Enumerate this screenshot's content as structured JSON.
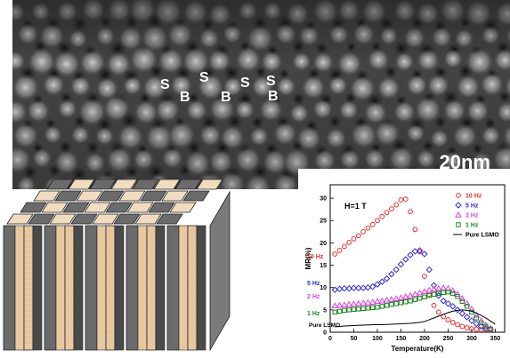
{
  "micrograph": {
    "site_labels": [
      "S",
      "B",
      "S",
      "B",
      "S",
      "S",
      "B"
    ],
    "scale_bar": "20nm"
  },
  "schematic": {
    "colors": {
      "pillar": "#6b6b6b",
      "matrix": "#e8c8a0",
      "top_light": "#f2dcc0"
    }
  },
  "chart_data": {
    "type": "scatter",
    "xlabel": "Temperature(K)",
    "ylabel": "MR(%)",
    "xlim": [
      0,
      370
    ],
    "ylim": [
      0,
      33
    ],
    "xticks": [
      0,
      50,
      100,
      150,
      200,
      250,
      300,
      350
    ],
    "yticks": [
      0,
      5,
      10,
      15,
      20,
      25,
      30
    ],
    "annotation": "H=1 T",
    "series": [
      {
        "name": "10 Hz",
        "marker": "circle",
        "color": "#e8302a",
        "x": [
          10,
          20,
          30,
          40,
          50,
          60,
          70,
          80,
          90,
          100,
          110,
          120,
          130,
          140,
          150,
          160,
          170,
          180,
          190,
          200,
          210,
          220,
          230,
          240,
          250,
          260,
          270,
          280,
          290,
          300,
          310,
          320,
          330,
          340
        ],
        "y": [
          17.5,
          18.3,
          19.2,
          20.1,
          20.9,
          21.6,
          22.5,
          23.3,
          24.1,
          25.0,
          25.9,
          26.8,
          27.6,
          28.5,
          29.6,
          29.8,
          27.0,
          23.0,
          18.0,
          12.5,
          8.5,
          6.0,
          4.5,
          3.5,
          2.8,
          2.2,
          1.7,
          1.3,
          1.0,
          0.8,
          0.7,
          0.6,
          0.6,
          0.5
        ]
      },
      {
        "name": "5 Hz",
        "marker": "diamond",
        "color": "#2a2ad6",
        "x": [
          10,
          20,
          30,
          40,
          50,
          60,
          70,
          80,
          90,
          100,
          110,
          120,
          130,
          140,
          150,
          160,
          170,
          180,
          190,
          200,
          210,
          220,
          230,
          240,
          250,
          260,
          270,
          280,
          290,
          300,
          310,
          320,
          330,
          340
        ],
        "y": [
          9.5,
          9.7,
          9.8,
          9.8,
          9.9,
          9.9,
          9.9,
          10.0,
          10.2,
          10.7,
          11.3,
          12.0,
          13.0,
          14.0,
          15.2,
          16.3,
          17.3,
          18.1,
          18.3,
          17.5,
          14.0,
          10.5,
          8.2,
          7.0,
          6.4,
          5.8,
          5.0,
          4.2,
          3.4,
          2.6,
          1.9,
          1.3,
          0.9,
          0.6
        ]
      },
      {
        "name": "2 Hz",
        "marker": "triangle",
        "color": "#e040e0",
        "x": [
          10,
          20,
          30,
          40,
          50,
          60,
          70,
          80,
          90,
          100,
          110,
          120,
          130,
          140,
          150,
          160,
          170,
          180,
          190,
          200,
          210,
          220,
          230,
          240,
          250,
          260,
          270,
          280,
          290,
          300,
          310,
          320,
          330,
          340
        ],
        "y": [
          5.9,
          6.0,
          6.1,
          6.2,
          6.3,
          6.4,
          6.5,
          6.6,
          6.7,
          6.9,
          7.0,
          7.2,
          7.3,
          7.5,
          7.7,
          7.9,
          8.2,
          8.5,
          8.8,
          9.1,
          9.4,
          9.6,
          9.8,
          9.9,
          9.8,
          9.3,
          8.5,
          7.5,
          6.4,
          5.2,
          3.8,
          2.6,
          1.6,
          0.9
        ]
      },
      {
        "name": "1 Hz",
        "marker": "square",
        "color": "#18861f",
        "x": [
          10,
          20,
          30,
          40,
          50,
          60,
          70,
          80,
          90,
          100,
          110,
          120,
          130,
          140,
          150,
          160,
          170,
          180,
          190,
          200,
          210,
          220,
          230,
          240,
          250,
          260,
          270,
          280,
          290,
          300,
          310,
          320,
          330,
          340
        ],
        "y": [
          4.5,
          4.7,
          4.9,
          5.0,
          5.1,
          5.2,
          5.3,
          5.4,
          5.5,
          5.6,
          5.8,
          6.0,
          6.2,
          6.4,
          6.6,
          6.8,
          7.0,
          7.3,
          7.6,
          7.9,
          8.2,
          8.5,
          8.7,
          8.9,
          9.0,
          8.7,
          8.0,
          6.9,
          5.8,
          4.5,
          3.2,
          2.1,
          1.3,
          0.7
        ]
      },
      {
        "name": "Pure LSMO",
        "marker": "line",
        "color": "#000000",
        "x": [
          10,
          30,
          50,
          70,
          90,
          110,
          130,
          150,
          170,
          190,
          200,
          210,
          220,
          230,
          240,
          250,
          260,
          270,
          280,
          290,
          300,
          310,
          320,
          330,
          340,
          350
        ],
        "y": [
          1.2,
          1.4,
          1.5,
          1.6,
          1.7,
          1.7,
          1.8,
          1.9,
          2.0,
          2.2,
          2.4,
          2.8,
          3.2,
          3.6,
          4.0,
          4.4,
          4.7,
          4.9,
          5.0,
          4.9,
          4.7,
          4.3,
          3.8,
          3.2,
          2.5,
          1.8
        ]
      }
    ],
    "inline_labels": [
      "10 Hz",
      "5 Hz",
      "2 Hz",
      "1 Hz",
      "Pure LSMO"
    ],
    "legend": [
      {
        "label": "10 Hz",
        "marker": "circle",
        "color": "#e8302a"
      },
      {
        "label": "5 Hz",
        "marker": "diamond",
        "color": "#2a2ad6"
      },
      {
        "label": "2 Hz",
        "marker": "triangle",
        "color": "#e040e0"
      },
      {
        "label": "1 Hz",
        "marker": "square",
        "color": "#18861f"
      },
      {
        "label": "Pure LSMO",
        "marker": "line",
        "color": "#000000"
      }
    ],
    "legend_position": "top-right"
  }
}
